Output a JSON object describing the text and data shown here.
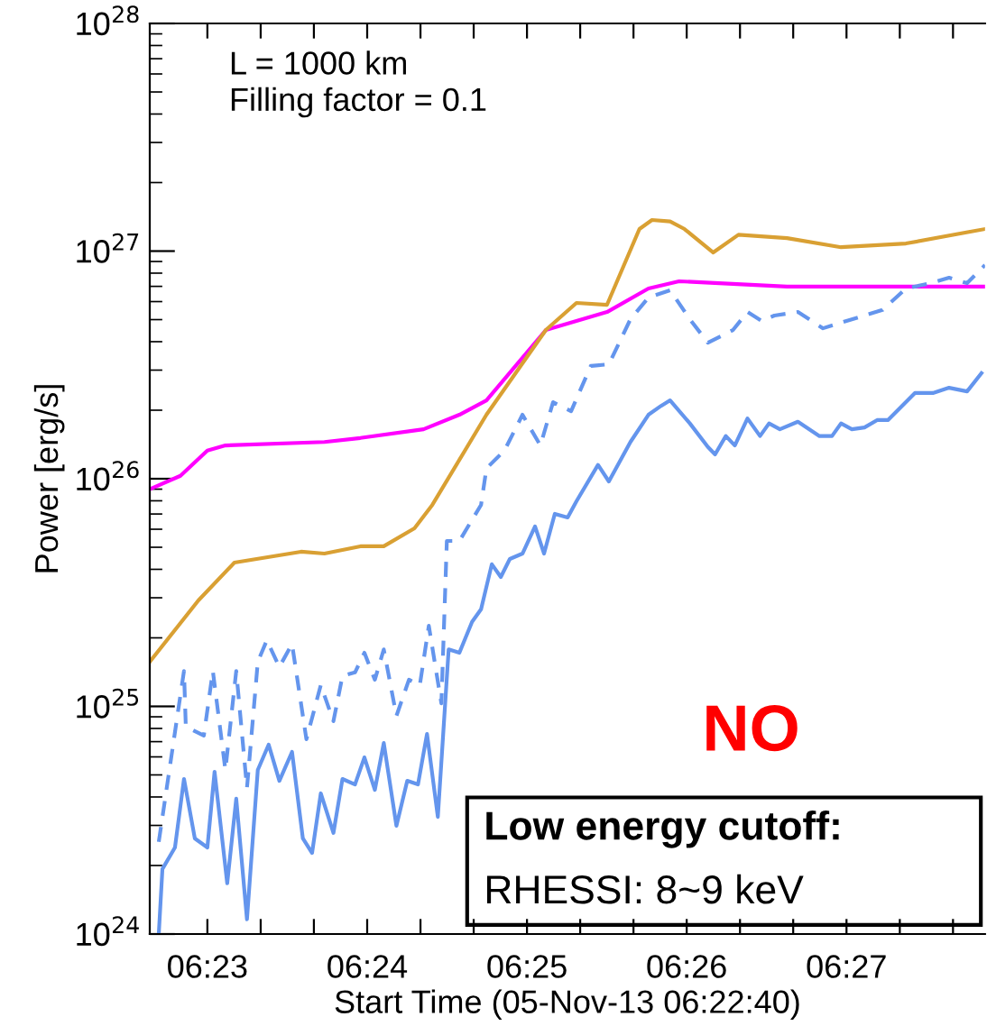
{
  "chart_data": {
    "type": "line",
    "ylabel": "Power [erg/s]",
    "xlabel": "Start Time (05-Nov-13 06:22:40)",
    "log": "y",
    "grid": false,
    "legend": false,
    "marker": "none",
    "xlim": [
      6.37732,
      6.46445
    ],
    "ylim": [
      1e+24,
      1e+28
    ],
    "yticks": [
      {
        "value": 1e+24,
        "label": "10$^{24}$"
      },
      {
        "value": 1e+25,
        "label": "10$^{25}$"
      },
      {
        "value": 1e+26,
        "label": "10$^{26}$"
      },
      {
        "value": 1e+27,
        "label": "10$^{27}$"
      },
      {
        "value": 1e+28,
        "label": "10$^{28}$"
      }
    ],
    "xticks": [
      {
        "value": 6.38333,
        "label": "06:23"
      },
      {
        "value": 6.38889,
        "label": null
      },
      {
        "value": 6.39444,
        "label": null
      },
      {
        "value": 6.4,
        "label": "06:24"
      },
      {
        "value": 6.40556,
        "label": null
      },
      {
        "value": 6.41111,
        "label": null
      },
      {
        "value": 6.41667,
        "label": "06:25"
      },
      {
        "value": 6.42222,
        "label": null
      },
      {
        "value": 6.42778,
        "label": null
      },
      {
        "value": 6.43333,
        "label": "06:26"
      },
      {
        "value": 6.43889,
        "label": null
      },
      {
        "value": 6.44444,
        "label": null
      },
      {
        "value": 6.45,
        "label": "06:27"
      },
      {
        "value": 6.45556,
        "label": null
      },
      {
        "value": 6.46111,
        "label": null
      }
    ],
    "series": [
      {
        "color": "#ff00ff",
        "line_style": "solid",
        "x": [
          6.37732,
          6.38052,
          6.38333,
          6.38521,
          6.39554,
          6.39929,
          6.40588,
          6.40962,
          6.41244,
          6.41864,
          6.42502,
          6.42934,
          6.43253,
          6.4438,
          6.46445
        ],
        "values": [
          9e+25,
          1.03e+26,
          1.33e+26,
          1.4e+26,
          1.45e+26,
          1.51e+26,
          1.65e+26,
          1.91e+26,
          2.21e+26,
          4.5e+26,
          5.4e+26,
          6.85e+26,
          7.37e+26,
          6.98e+26,
          6.98e+26
        ]
      },
      {
        "color": "#d9a033",
        "line_style": "solid",
        "x": [
          6.37732,
          6.38239,
          6.38615,
          6.3931,
          6.39554,
          6.39929,
          6.40173,
          6.40493,
          6.4068,
          6.41244,
          6.41864,
          6.42183,
          6.42502,
          6.4284,
          6.42971,
          6.4316,
          6.4331,
          6.4361,
          6.43873,
          6.4438,
          6.44943,
          6.4562,
          6.46445
        ],
        "values": [
          1.57e+25,
          2.92e+25,
          4.28e+25,
          4.78e+25,
          4.69e+25,
          5.05e+25,
          5.05e+25,
          6.06e+25,
          7.68e+25,
          1.91e+26,
          4.5e+26,
          5.92e+26,
          5.81e+26,
          1.25e+27,
          1.37e+27,
          1.35e+27,
          1.25e+27,
          9.86e+26,
          1.18e+27,
          1.14e+27,
          1.04e+27,
          1.08e+27,
          1.25e+27
        ]
      },
      {
        "color": "#6495ed",
        "line_style": "dashed",
        "x": [
          6.37826,
          6.38089,
          6.38108,
          6.38296,
          6.3839,
          6.38521,
          6.38634,
          6.38746,
          6.38859,
          6.38953,
          6.39084,
          6.39216,
          6.39366,
          6.39516,
          6.39648,
          6.39742,
          6.39873,
          6.39971,
          6.4008,
          6.40173,
          6.40305,
          6.40436,
          6.40549,
          6.40643,
          6.40774,
          6.40831,
          6.40962,
          6.41188,
          6.41244,
          6.41432,
          6.4162,
          6.41807,
          6.41939,
          6.42127,
          6.42333,
          6.42521,
          6.42746,
          6.42934,
          6.4316,
          6.43366,
          6.43554,
          6.43816,
          6.43967,
          6.44117,
          6.44248,
          6.44493,
          6.44755,
          6.45,
          6.45375,
          6.4562,
          6.45882,
          6.4607,
          6.46258,
          6.46445
        ],
        "values": [
          2.54e+24,
          1.43e+25,
          8.15e+24,
          7.44e+24,
          1.43e+25,
          5.26e+24,
          1.43e+25,
          4.38e+24,
          1.57e+25,
          1.95e+25,
          1.49e+25,
          1.88e+25,
          7.17e+24,
          1.24e+25,
          8.61e+24,
          1.36e+25,
          1.41e+25,
          1.72e+25,
          1.31e+25,
          1.78e+25,
          9.08e+24,
          1.31e+25,
          1.24e+25,
          2.26e+25,
          1.03e+25,
          5.33e+25,
          5.33e+25,
          7.68e+25,
          1.11e+26,
          1.33e+26,
          1.91e+26,
          1.4e+26,
          2.17e+26,
          1.98e+26,
          3.13e+26,
          3.18e+26,
          5.02e+26,
          6.25e+26,
          6.73e+26,
          5.02e+26,
          3.96e+26,
          4.5e+26,
          5.4e+26,
          4.93e+26,
          5.21e+26,
          5.4e+26,
          4.58e+26,
          4.93e+26,
          5.51e+26,
          6.85e+26,
          7.23e+26,
          7.64e+26,
          7.23e+26,
          8.68e+26
        ]
      },
      {
        "color": "#6495ed",
        "line_style": "solid",
        "x": [
          6.37826,
          6.37864,
          6.37995,
          6.38089,
          6.38202,
          6.38333,
          6.38408,
          6.3854,
          6.38634,
          6.38746,
          6.38859,
          6.38972,
          6.39084,
          6.39216,
          6.39329,
          6.39425,
          6.39516,
          6.39648,
          6.39742,
          6.39873,
          6.39971,
          6.4008,
          6.40173,
          6.40305,
          6.40418,
          6.4053,
          6.40624,
          6.40737,
          6.4085,
          6.40962,
          6.41094,
          6.41188,
          6.413,
          6.41394,
          6.41488,
          6.4162,
          6.41751,
          6.41845,
          6.41957,
          6.42091,
          6.42183,
          6.42408,
          6.42521,
          6.42746,
          6.42934,
          6.43066,
          6.4316,
          6.43366,
          6.43554,
          6.43629,
          6.43741,
          6.43835,
          6.43967,
          6.44098,
          6.44192,
          6.44305,
          6.44493,
          6.44718,
          6.44849,
          6.44943,
          6.45056,
          6.45188,
          6.45319,
          6.45432,
          6.45713,
          6.45901,
          6.4607,
          6.46258,
          6.46408
        ],
        "values": [
          1e+24,
          1.93e+24,
          2.4e+24,
          4.8e+24,
          2.63e+24,
          2.4e+24,
          5.16e+24,
          1.67e+24,
          3.93e+24,
          1.16e+24,
          5.26e+24,
          6.79e+24,
          4.71e+24,
          6.31e+24,
          2.63e+24,
          2.27e+24,
          4.15e+24,
          2.78e+24,
          4.8e+24,
          4.54e+24,
          5.97e+24,
          4.3e+24,
          6.91e+24,
          2.99e+24,
          4.71e+24,
          4.54e+24,
          7.57e+24,
          3.27e+24,
          1.78e+25,
          1.72e+25,
          2.35e+25,
          2.67e+25,
          4.21e+25,
          3.7e+25,
          4.44e+25,
          4.69e+25,
          6.17e+25,
          4.69e+25,
          7.01e+25,
          6.76e+25,
          7.96e+25,
          1.15e+26,
          9.73e+25,
          1.45e+26,
          1.91e+26,
          2.09e+26,
          2.21e+26,
          1.75e+26,
          1.38e+26,
          1.28e+26,
          1.54e+26,
          1.4e+26,
          1.84e+26,
          1.54e+26,
          1.75e+26,
          1.65e+26,
          1.78e+26,
          1.54e+26,
          1.54e+26,
          1.75e+26,
          1.65e+26,
          1.68e+26,
          1.81e+26,
          1.81e+26,
          2.38e+26,
          2.38e+26,
          2.51e+26,
          2.42e+26,
          2.91e+26
        ]
      }
    ],
    "annotations": [
      "L = 1000 km",
      "Filling factor = 0.1",
      "NO",
      "Low energy cutoff:",
      "RHESSI: 8~9 keV"
    ]
  }
}
